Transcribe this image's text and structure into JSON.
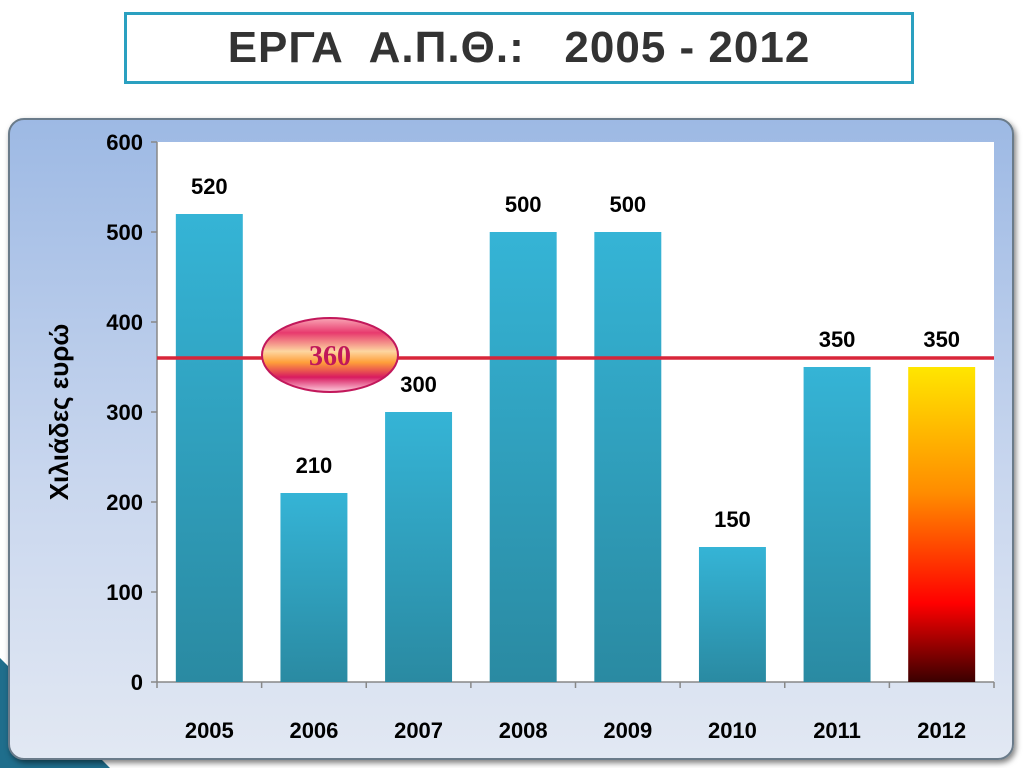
{
  "title": "ΕΡΓΑ  Α.Π.Θ.:   2005 - 2012",
  "chart_data": {
    "type": "bar",
    "categories": [
      "2005",
      "2006",
      "2007",
      "2008",
      "2009",
      "2010",
      "2011",
      "2012"
    ],
    "values": [
      520,
      210,
      300,
      500,
      500,
      150,
      350,
      350
    ],
    "ylabel": "Χιλιάδες ευρώ",
    "ylim": [
      0,
      600
    ],
    "yticks": [
      0,
      100,
      200,
      300,
      400,
      500,
      600
    ],
    "reference_line": {
      "value": 360,
      "label": "360",
      "color": "#d8263a"
    },
    "highlight_category": "2012",
    "grid": false,
    "colors": {
      "bar": "#2fa8c9",
      "bar_dark": "#2b7f98",
      "highlight_top": "#ffe000",
      "highlight_mid": "#ff7a00",
      "highlight_low": "#ff0000",
      "highlight_bottom": "#3a0000"
    }
  }
}
